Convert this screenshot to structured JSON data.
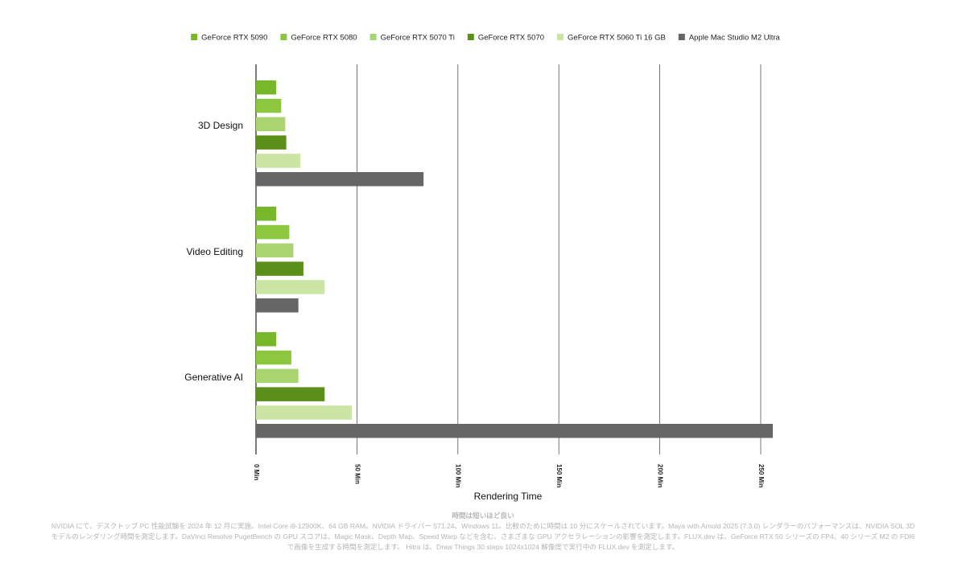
{
  "chart_data": {
    "type": "bar",
    "orientation": "horizontal",
    "title": "",
    "xlabel": "Rendering Time",
    "ylabel": "",
    "xlim": [
      0,
      255
    ],
    "xticks": [
      0,
      50,
      100,
      150,
      200,
      250
    ],
    "xtick_labels": [
      "0 Min",
      "50 Min",
      "100 Min",
      "150 Min",
      "200 Min",
      "250 Min"
    ],
    "categories": [
      "3D Design",
      "Video Editing",
      "Generative AI"
    ],
    "legend_position": "top",
    "series": [
      {
        "name": "GeForce RTX 5090",
        "color": "#76b82a",
        "values": [
          10,
          10,
          10
        ]
      },
      {
        "name": "GeForce RTX 5080",
        "color": "#8dc63f",
        "values": [
          12.5,
          16.5,
          17.5
        ]
      },
      {
        "name": "GeForce RTX 5070 Ti",
        "color": "#a9d46f",
        "values": [
          14.5,
          18.5,
          21
        ]
      },
      {
        "name": "GeForce RTX 5070",
        "color": "#5a8f1a",
        "values": [
          15,
          23.5,
          34
        ]
      },
      {
        "name": "GeForce RTX 5060 Ti 16 GB",
        "color": "#cbe5a5",
        "values": [
          22,
          34,
          47.5
        ]
      },
      {
        "name": "Apple Mac Studio M2 Ultra",
        "color": "#666666",
        "values": [
          83,
          21,
          256
        ]
      }
    ]
  },
  "footnote": {
    "title": "時間は短いほど良い",
    "body": "NVIDIA にて、デスクトップ PC 性能試験を 2024 年 12 月に実施。Intel Core i9-12900K、64 GB RAM。NVIDIA ドライバー 571.24、Windows 11。比較のために時間は 10 分にスケールされています。Maya with Arnold 2025 (7.3.0) レンダラーのパフォーマンスは、NVIDIA SOL 3D モデルのレンダリング時間を測定します。DaVinci Resolve PugetBench の GPU スコアは、Magic Mask、Depth Map、Speed Warp などを含む、さまざまな GPU アクセラレーションの影響を測定します。FLUX.dev は、GeForce RTX 50 シリーズの FP4、40 シリーズ M2 の FDI6 で画像を生成する時間を測定します。 Hitra は、Draw Things 30 steps 1024x1024 解像度で実行中の FLUX.dev を測定します。"
  }
}
